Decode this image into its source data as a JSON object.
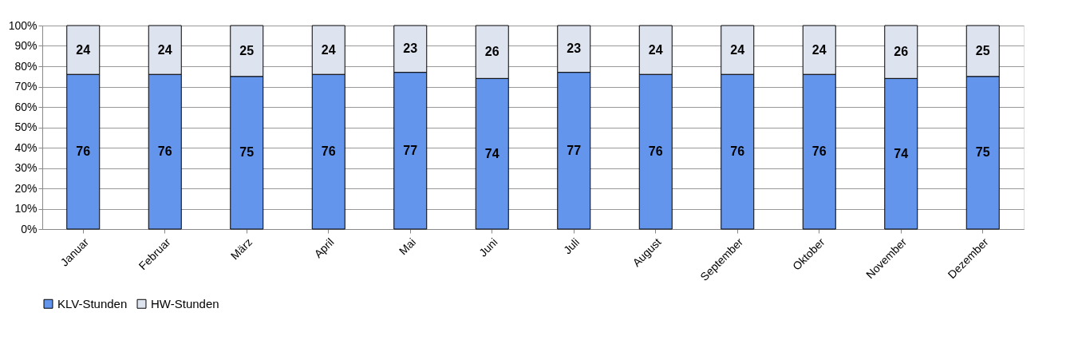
{
  "chart_data": {
    "type": "bar",
    "stacked": true,
    "categories": [
      "Januar",
      "Februar",
      "März",
      "April",
      "Mai",
      "Juni",
      "Juli",
      "August",
      "September",
      "Oktober",
      "November",
      "Dezember"
    ],
    "series": [
      {
        "name": "KLV-Stunden",
        "color": "#6495ed",
        "values": [
          76,
          76,
          75,
          76,
          77,
          74,
          77,
          76,
          76,
          76,
          74,
          75
        ]
      },
      {
        "name": "HW-Stunden",
        "color": "#dde4f0",
        "values": [
          24,
          24,
          25,
          24,
          23,
          26,
          23,
          24,
          24,
          24,
          26,
          25
        ]
      }
    ],
    "ylim": [
      0,
      100
    ],
    "yticks": [
      {
        "value": 0,
        "label": "0%"
      },
      {
        "value": 10,
        "label": "10%"
      },
      {
        "value": 20,
        "label": "20%"
      },
      {
        "value": 30,
        "label": "30%"
      },
      {
        "value": 40,
        "label": "40%"
      },
      {
        "value": 50,
        "label": "50%"
      },
      {
        "value": 60,
        "label": "60%"
      },
      {
        "value": 70,
        "label": "70%"
      },
      {
        "value": 80,
        "label": "80%"
      },
      {
        "value": 90,
        "label": "90%"
      },
      {
        "value": 100,
        "label": "100%"
      }
    ],
    "grid": "y",
    "legend": "bottom",
    "data_labels": true
  }
}
